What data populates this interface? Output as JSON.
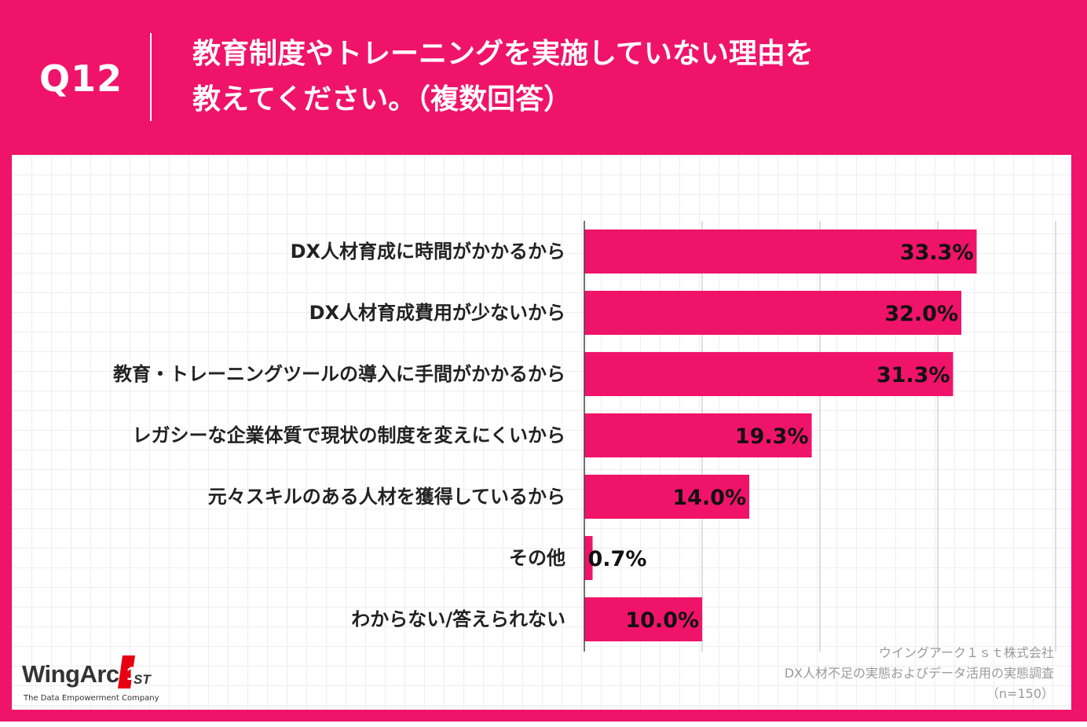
{
  "header": {
    "question_number": "Q12",
    "title_line1": "教育制度やトレーニングを実施していない理由を",
    "title_line2": "教えてください。（複数回答）"
  },
  "colors": {
    "brand_pink": "#f0136a",
    "bar": "#f0136a",
    "text_dark": "#222222",
    "source_gray": "#9a9a9a"
  },
  "chart_data": {
    "type": "bar",
    "orientation": "horizontal",
    "categories": [
      "DX人材育成に時間がかかるから",
      "DX人材育成費用が少ないから",
      "教育・トレーニングツールの導入に手間がかかるから",
      "レガシーな企業体質で現状の制度を変えにくいから",
      "元々スキルのある人材を獲得しているから",
      "その他",
      "わからない/答えられない"
    ],
    "values": [
      33.3,
      32.0,
      31.3,
      19.3,
      14.0,
      0.7,
      10.0
    ],
    "value_labels": [
      "33.3%",
      "32.0%",
      "31.3%",
      "19.3%",
      "14.0%",
      "0.7%",
      "10.0%"
    ],
    "xlim": [
      0,
      40
    ],
    "grid": true,
    "legend": "none"
  },
  "logo": {
    "name": "WingArc",
    "mark_text": "1ST",
    "tagline": "The Data Empowerment Company"
  },
  "source": {
    "company": "ウイングアーク１ｓｔ株式会社",
    "survey": "DX人材不足の実態およびデータ活用の実態調査",
    "sample": "（n=150）"
  }
}
